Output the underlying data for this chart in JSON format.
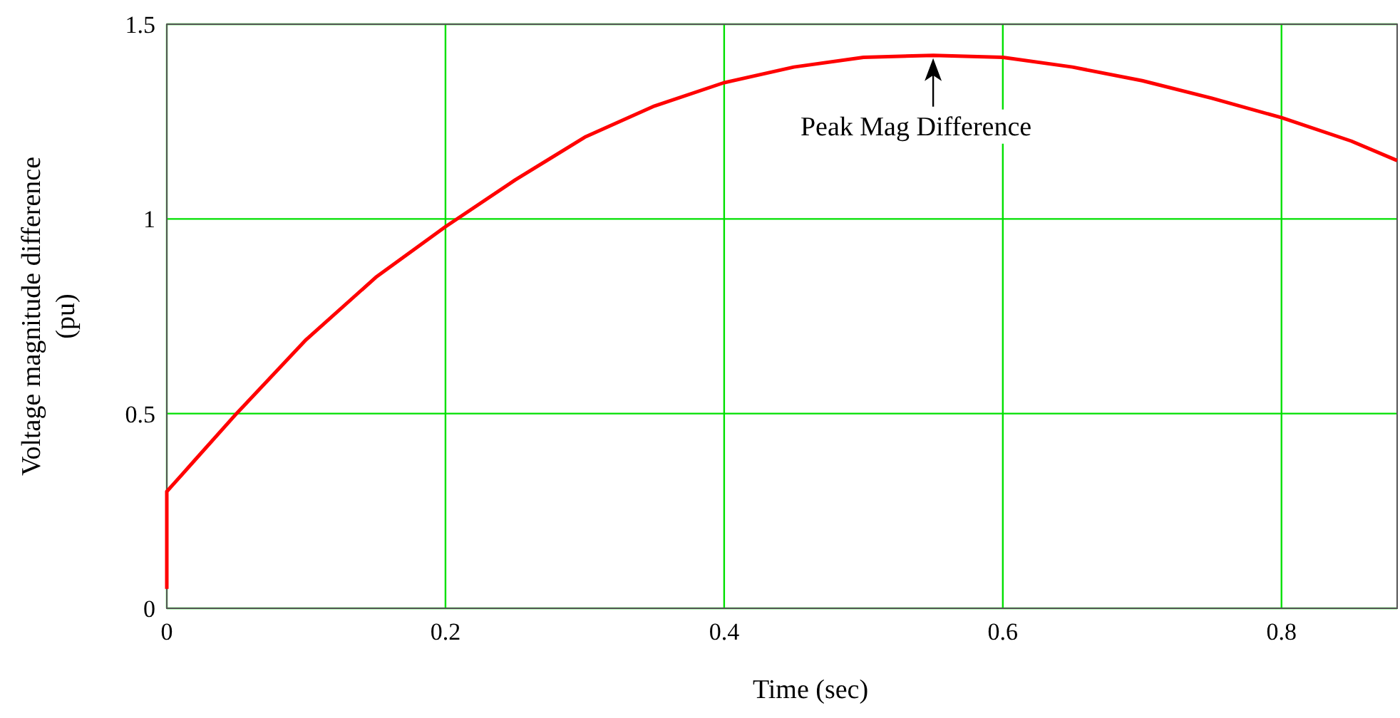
{
  "chart_data": {
    "type": "line",
    "xlabel": "Time (sec)",
    "ylabel": "Voltage magnitude difference\n(pu)",
    "xlim": [
      0,
      0.883
    ],
    "ylim": [
      0,
      1.5
    ],
    "xticks": [
      0,
      0.2,
      0.4,
      0.6,
      0.8
    ],
    "yticks": [
      0,
      0.5,
      1,
      1.5
    ],
    "grid": true,
    "marker": "none",
    "line_style": "solid",
    "annotations": [
      {
        "text": "Peak Mag Difference",
        "x": 0.55,
        "y": 1.42
      }
    ],
    "series": [
      {
        "color": "#ff0000",
        "x": [
          0,
          0,
          0.005,
          0.02,
          0.05,
          0.1,
          0.15,
          0.2,
          0.25,
          0.3,
          0.35,
          0.4,
          0.45,
          0.5,
          0.55,
          0.6,
          0.65,
          0.7,
          0.75,
          0.8,
          0.85,
          0.883
        ],
        "values": [
          0.05,
          0.3,
          0.32,
          0.38,
          0.5,
          0.69,
          0.85,
          0.98,
          1.1,
          1.21,
          1.29,
          1.35,
          1.39,
          1.415,
          1.42,
          1.415,
          1.39,
          1.355,
          1.31,
          1.26,
          1.2,
          1.15
        ]
      }
    ]
  }
}
